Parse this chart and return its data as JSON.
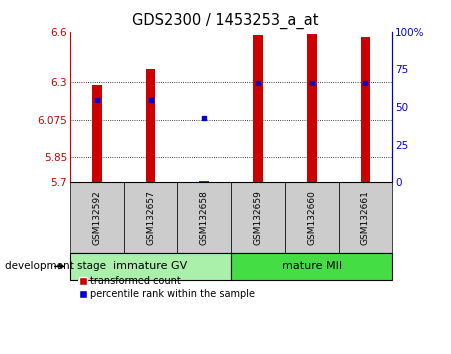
{
  "title": "GDS2300 / 1453253_a_at",
  "samples": [
    "GSM132592",
    "GSM132657",
    "GSM132658",
    "GSM132659",
    "GSM132660",
    "GSM132661"
  ],
  "red_values": [
    6.28,
    6.38,
    5.71,
    6.58,
    6.59,
    6.57
  ],
  "blue_values": [
    6.19,
    6.19,
    6.083,
    6.295,
    6.295,
    6.295
  ],
  "ymin": 5.7,
  "ymax": 6.6,
  "yticks": [
    5.7,
    5.85,
    6.075,
    6.3,
    6.6
  ],
  "ytick_labels": [
    "5.7",
    "5.85",
    "6.075",
    "6.3",
    "6.6"
  ],
  "right_yticks": [
    0,
    25,
    50,
    75,
    100
  ],
  "right_ytick_labels": [
    "0",
    "25",
    "50",
    "75",
    "100%"
  ],
  "groups": [
    {
      "label": "immature GV",
      "start": 0,
      "end": 3,
      "color": "#aaf0aa"
    },
    {
      "label": "mature MII",
      "start": 3,
      "end": 6,
      "color": "#44dd44"
    }
  ],
  "group_label": "development stage",
  "red_color": "#cc0000",
  "blue_color": "#0000cc",
  "bar_width": 0.18,
  "background_color": "#ffffff",
  "plot_bg_color": "#ffffff",
  "tick_area_color": "#cccccc",
  "legend_red": "transformed count",
  "legend_blue": "percentile rank within the sample"
}
